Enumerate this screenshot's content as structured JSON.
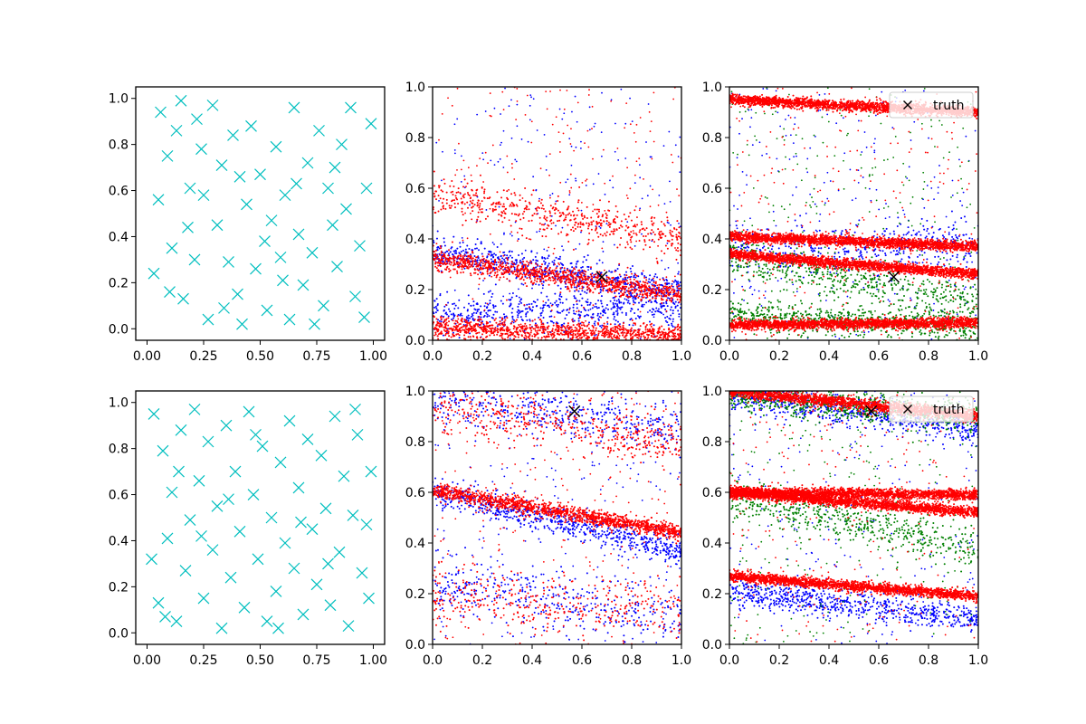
{
  "figure": {
    "layout": "2x3 grid",
    "background": "#ffffff"
  },
  "chart_data": [
    {
      "type": "scatter",
      "panel": "row1-col1",
      "marker": "x",
      "color": "#00bfbf",
      "xlim": [
        -0.05,
        1.05
      ],
      "ylim": [
        -0.05,
        1.05
      ],
      "xticks": [
        "0.00",
        "0.25",
        "0.50",
        "0.75",
        "1.00"
      ],
      "yticks": [
        "0.0",
        "0.2",
        "0.4",
        "0.6",
        "0.8",
        "1.0"
      ],
      "points": [
        [
          0.03,
          0.24
        ],
        [
          0.06,
          0.94
        ],
        [
          0.09,
          0.75
        ],
        [
          0.11,
          0.35
        ],
        [
          0.13,
          0.86
        ],
        [
          0.15,
          0.99
        ],
        [
          0.16,
          0.13
        ],
        [
          0.19,
          0.61
        ],
        [
          0.21,
          0.3
        ],
        [
          0.22,
          0.91
        ],
        [
          0.25,
          0.58
        ],
        [
          0.27,
          0.04
        ],
        [
          0.29,
          0.97
        ],
        [
          0.31,
          0.45
        ],
        [
          0.33,
          0.71
        ],
        [
          0.36,
          0.29
        ],
        [
          0.38,
          0.84
        ],
        [
          0.4,
          0.15
        ],
        [
          0.42,
          0.02
        ],
        [
          0.44,
          0.54
        ],
        [
          0.46,
          0.88
        ],
        [
          0.48,
          0.26
        ],
        [
          0.5,
          0.67
        ],
        [
          0.53,
          0.08
        ],
        [
          0.55,
          0.47
        ],
        [
          0.57,
          0.79
        ],
        [
          0.59,
          0.31
        ],
        [
          0.61,
          0.58
        ],
        [
          0.63,
          0.04
        ],
        [
          0.65,
          0.96
        ],
        [
          0.67,
          0.41
        ],
        [
          0.69,
          0.19
        ],
        [
          0.71,
          0.72
        ],
        [
          0.73,
          0.33
        ],
        [
          0.76,
          0.86
        ],
        [
          0.78,
          0.1
        ],
        [
          0.8,
          0.61
        ],
        [
          0.82,
          0.45
        ],
        [
          0.84,
          0.27
        ],
        [
          0.86,
          0.8
        ],
        [
          0.88,
          0.52
        ],
        [
          0.9,
          0.96
        ],
        [
          0.92,
          0.14
        ],
        [
          0.94,
          0.36
        ],
        [
          0.97,
          0.61
        ],
        [
          0.99,
          0.89
        ],
        [
          0.05,
          0.56
        ],
        [
          0.1,
          0.16
        ],
        [
          0.18,
          0.44
        ],
        [
          0.24,
          0.78
        ],
        [
          0.34,
          0.09
        ],
        [
          0.41,
          0.66
        ],
        [
          0.52,
          0.38
        ],
        [
          0.6,
          0.21
        ],
        [
          0.66,
          0.63
        ],
        [
          0.74,
          0.02
        ],
        [
          0.83,
          0.7
        ],
        [
          0.96,
          0.05
        ]
      ]
    },
    {
      "type": "scatter",
      "panel": "row1-col2",
      "marker": "dot",
      "series": [
        {
          "color": "#0000ff",
          "bands": [
            {
              "y0": 0.35,
              "y1": 0.19,
              "spread": 0.03
            },
            {
              "y0": 0.1,
              "y1": 0.13,
              "spread": 0.04
            }
          ]
        },
        {
          "color": "#ff0000",
          "bands": [
            {
              "y0": 0.32,
              "y1": 0.18,
              "spread": 0.02
            },
            {
              "y0": 0.58,
              "y1": 0.4,
              "spread": 0.04
            },
            {
              "y0": 0.05,
              "y1": 0.02,
              "spread": 0.02
            }
          ]
        }
      ],
      "truth_marker": {
        "x": 0.68,
        "y": 0.25,
        "color": "#000000"
      },
      "xlim": [
        0,
        1
      ],
      "ylim": [
        0,
        1
      ],
      "xticks": [
        "0.0",
        "0.2",
        "0.4",
        "0.6",
        "0.8",
        "1.0"
      ],
      "yticks": [
        "0.0",
        "0.2",
        "0.4",
        "0.6",
        "0.8",
        "1.0"
      ]
    },
    {
      "type": "scatter",
      "panel": "row1-col3",
      "marker": "dot",
      "series": [
        {
          "color": "#0000ff",
          "bands": [
            {
              "y0": 0.35,
              "y1": 0.38,
              "spread": 0.05
            }
          ]
        },
        {
          "color": "#008000",
          "bands": [
            {
              "y0": 0.33,
              "y1": 0.15,
              "spread": 0.04
            },
            {
              "y0": 0.1,
              "y1": 0.05,
              "spread": 0.03
            }
          ]
        },
        {
          "color": "#ff0000",
          "bands": [
            {
              "y0": 0.34,
              "y1": 0.26,
              "spread": 0.01
            },
            {
              "y0": 0.41,
              "y1": 0.37,
              "spread": 0.01
            },
            {
              "y0": 0.95,
              "y1": 0.9,
              "spread": 0.01
            },
            {
              "y0": 0.06,
              "y1": 0.07,
              "spread": 0.01
            }
          ]
        }
      ],
      "truth_marker": {
        "x": 0.66,
        "y": 0.25,
        "color": "#000000"
      },
      "legend": {
        "label": "truth",
        "position": "upper right"
      },
      "xlim": [
        0,
        1
      ],
      "ylim": [
        0,
        1
      ],
      "xticks": [
        "0.0",
        "0.2",
        "0.4",
        "0.6",
        "0.8",
        "1.0"
      ],
      "yticks": [
        "0.0",
        "0.2",
        "0.4",
        "0.6",
        "0.8",
        "1.0"
      ]
    },
    {
      "type": "scatter",
      "panel": "row2-col1",
      "marker": "x",
      "color": "#00bfbf",
      "xlim": [
        -0.05,
        1.05
      ],
      "ylim": [
        -0.05,
        1.05
      ],
      "xticks": [
        "0.00",
        "0.25",
        "0.50",
        "0.75",
        "1.00"
      ],
      "yticks": [
        "0.0",
        "0.2",
        "0.4",
        "0.6",
        "0.8",
        "1.0"
      ],
      "points": [
        [
          0.03,
          0.95
        ],
        [
          0.05,
          0.13
        ],
        [
          0.07,
          0.79
        ],
        [
          0.09,
          0.41
        ],
        [
          0.11,
          0.61
        ],
        [
          0.13,
          0.05
        ],
        [
          0.15,
          0.88
        ],
        [
          0.17,
          0.27
        ],
        [
          0.19,
          0.49
        ],
        [
          0.21,
          0.97
        ],
        [
          0.23,
          0.66
        ],
        [
          0.25,
          0.15
        ],
        [
          0.27,
          0.83
        ],
        [
          0.29,
          0.36
        ],
        [
          0.31,
          0.55
        ],
        [
          0.33,
          0.02
        ],
        [
          0.35,
          0.9
        ],
        [
          0.37,
          0.24
        ],
        [
          0.39,
          0.7
        ],
        [
          0.41,
          0.44
        ],
        [
          0.43,
          0.11
        ],
        [
          0.45,
          0.96
        ],
        [
          0.47,
          0.6
        ],
        [
          0.49,
          0.32
        ],
        [
          0.51,
          0.81
        ],
        [
          0.53,
          0.05
        ],
        [
          0.55,
          0.5
        ],
        [
          0.57,
          0.18
        ],
        [
          0.59,
          0.74
        ],
        [
          0.61,
          0.39
        ],
        [
          0.63,
          0.92
        ],
        [
          0.65,
          0.28
        ],
        [
          0.67,
          0.63
        ],
        [
          0.69,
          0.08
        ],
        [
          0.71,
          0.84
        ],
        [
          0.73,
          0.45
        ],
        [
          0.75,
          0.21
        ],
        [
          0.77,
          0.77
        ],
        [
          0.79,
          0.54
        ],
        [
          0.81,
          0.12
        ],
        [
          0.83,
          0.94
        ],
        [
          0.85,
          0.35
        ],
        [
          0.87,
          0.68
        ],
        [
          0.89,
          0.03
        ],
        [
          0.91,
          0.51
        ],
        [
          0.93,
          0.86
        ],
        [
          0.95,
          0.26
        ],
        [
          0.97,
          0.47
        ],
        [
          0.99,
          0.7
        ],
        [
          0.02,
          0.32
        ],
        [
          0.08,
          0.07
        ],
        [
          0.14,
          0.7
        ],
        [
          0.24,
          0.42
        ],
        [
          0.36,
          0.58
        ],
        [
          0.48,
          0.86
        ],
        [
          0.58,
          0.02
        ],
        [
          0.68,
          0.48
        ],
        [
          0.8,
          0.3
        ],
        [
          0.92,
          0.97
        ],
        [
          0.98,
          0.15
        ]
      ]
    },
    {
      "type": "scatter",
      "panel": "row2-col2",
      "marker": "dot",
      "series": [
        {
          "color": "#0000ff",
          "bands": [
            {
              "y0": 0.6,
              "y1": 0.37,
              "spread": 0.03
            },
            {
              "y0": 0.98,
              "y1": 0.85,
              "spread": 0.05
            },
            {
              "y0": 0.25,
              "y1": 0.1,
              "spread": 0.06
            }
          ]
        },
        {
          "color": "#ff0000",
          "bands": [
            {
              "y0": 0.61,
              "y1": 0.44,
              "spread": 0.015
            },
            {
              "y0": 0.95,
              "y1": 0.8,
              "spread": 0.05
            },
            {
              "y0": 0.2,
              "y1": 0.12,
              "spread": 0.06
            }
          ]
        }
      ],
      "truth_marker": {
        "x": 0.57,
        "y": 0.92,
        "color": "#000000"
      },
      "xlim": [
        0,
        1
      ],
      "ylim": [
        0,
        1
      ],
      "xticks": [
        "0.0",
        "0.2",
        "0.4",
        "0.6",
        "0.8",
        "1.0"
      ],
      "yticks": [
        "0.0",
        "0.2",
        "0.4",
        "0.6",
        "0.8",
        "1.0"
      ]
    },
    {
      "type": "scatter",
      "panel": "row2-col3",
      "marker": "dot",
      "series": [
        {
          "color": "#0000ff",
          "bands": [
            {
              "y0": 0.99,
              "y1": 0.85,
              "spread": 0.03
            },
            {
              "y0": 0.21,
              "y1": 0.1,
              "spread": 0.03
            }
          ]
        },
        {
          "color": "#008000",
          "bands": [
            {
              "y0": 0.58,
              "y1": 0.38,
              "spread": 0.04
            },
            {
              "y0": 0.98,
              "y1": 0.9,
              "spread": 0.03
            }
          ]
        },
        {
          "color": "#ff0000",
          "bands": [
            {
              "y0": 1.0,
              "y1": 0.9,
              "spread": 0.012
            },
            {
              "y0": 0.6,
              "y1": 0.52,
              "spread": 0.01
            },
            {
              "y0": 0.27,
              "y1": 0.19,
              "spread": 0.01
            },
            {
              "y0": 0.6,
              "y1": 0.59,
              "spread": 0.01
            }
          ]
        }
      ],
      "truth_marker": {
        "x": 0.57,
        "y": 0.92,
        "color": "#000000"
      },
      "legend": {
        "label": "truth",
        "position": "upper right"
      },
      "xlim": [
        0,
        1
      ],
      "ylim": [
        0,
        1
      ],
      "xticks": [
        "0.0",
        "0.2",
        "0.4",
        "0.6",
        "0.8",
        "1.0"
      ],
      "yticks": [
        "0.0",
        "0.2",
        "0.4",
        "0.6",
        "0.8",
        "1.0"
      ]
    }
  ]
}
